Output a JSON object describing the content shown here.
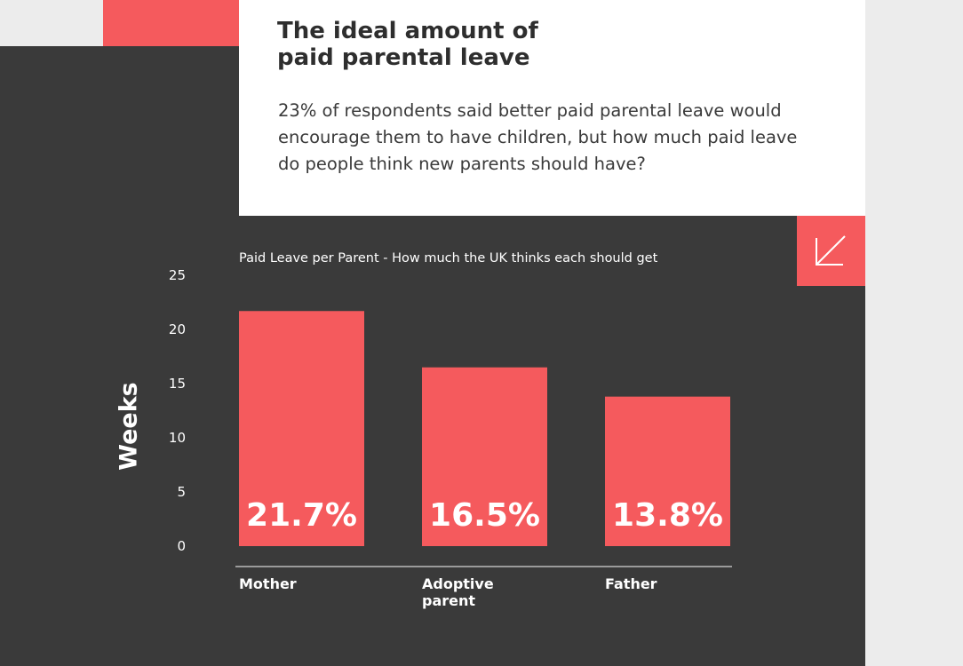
{
  "header": {
    "title": "The ideal amount of\npaid parental leave",
    "subtitle": "23% of respondents said better paid parental leave would encourage them to have children, but how much paid leave do people think new parents should have?"
  },
  "colors": {
    "accent": "#f55a5d",
    "panel": "#3a3a3a",
    "card": "#ffffff",
    "axis_line": "#bbbbbb"
  },
  "icons": {
    "corner": "arrow-down-left-icon"
  },
  "chart_data": {
    "type": "bar",
    "title": "Paid Leave per Parent - How much the UK thinks each should get",
    "xlabel": "",
    "ylabel": "Weeks",
    "ylim": [
      0,
      25
    ],
    "yticks": [
      "0",
      "5",
      "10",
      "15",
      "20",
      "25"
    ],
    "categories": [
      [
        "Mother"
      ],
      [
        "Adoptive",
        "parent"
      ],
      [
        "Father"
      ]
    ],
    "values": [
      21.7,
      16.5,
      13.8
    ],
    "data_labels": [
      "21.7%",
      "16.5%",
      "13.8%"
    ],
    "grid": false,
    "legend": "none"
  }
}
